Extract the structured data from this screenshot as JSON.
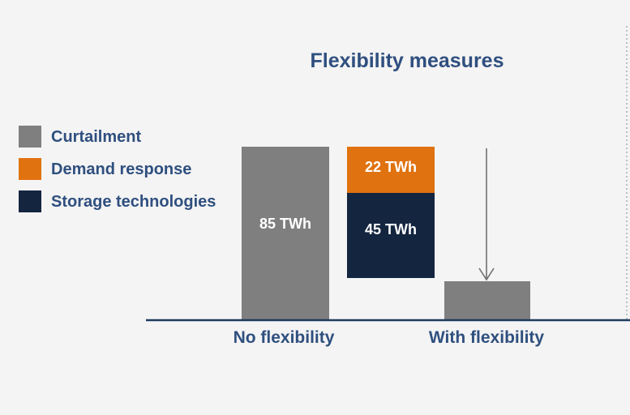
{
  "chart_data": {
    "type": "bar",
    "title": "Flexibility measures",
    "unit": "TWh",
    "ylim": [
      0,
      100
    ],
    "categories": [
      "No flexibility",
      "With flexibility"
    ],
    "legend": {
      "placement": "left",
      "entries": [
        {
          "name": "Curtailment",
          "color": "#7f7f7f"
        },
        {
          "name": "Demand response",
          "color": "#e07210"
        },
        {
          "name": "Storage technologies",
          "color": "#14253f"
        }
      ]
    },
    "bars": [
      {
        "category": "No flexibility",
        "series": "Curtailment",
        "value": 85,
        "label": "85 TWh"
      },
      {
        "category": "flexibility measures",
        "series": "Storage technologies",
        "value": 45,
        "label": "45 TWh"
      },
      {
        "category": "flexibility measures",
        "series": "Demand response",
        "value": 22,
        "label": "22  TWh"
      },
      {
        "category": "With flexibility",
        "series": "Curtailment",
        "value": 18,
        "label": ""
      }
    ],
    "grid": false,
    "arrow": "downward arrow from top of flexibility measures to With flexibility bar"
  }
}
